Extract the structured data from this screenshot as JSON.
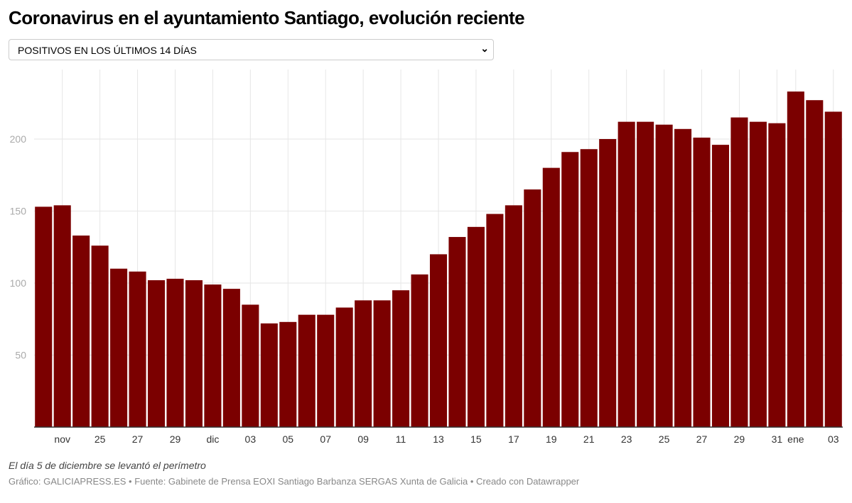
{
  "title": "Coronavirus en el ayuntamiento Santiago, evolución reciente",
  "dropdown": {
    "selected": "POSITIVOS EN LOS ÚLTIMOS 14 DÍAS",
    "icon": "chevron-down-icon"
  },
  "note": "El día 5 de diciembre se levantó el perímetro",
  "source": "Gráfico: GALICIAPRESS.ES • Fuente: Gabinete de Prensa EOXI Santiago Barbanza SERGAS Xunta de Galicia • Creado con Datawrapper",
  "chart_data": {
    "type": "bar",
    "color": "#7b0000",
    "grid": true,
    "ylim": [
      0,
      240
    ],
    "yticks": [
      50,
      100,
      150,
      200
    ],
    "xticklabels": [
      "nov",
      "25",
      "27",
      "29",
      "dic",
      "03",
      "05",
      "07",
      "09",
      "11",
      "13",
      "15",
      "17",
      "19",
      "21",
      "23",
      "25",
      "27",
      "29",
      "31",
      "ene",
      "03"
    ],
    "xtick_index": [
      1,
      3,
      5,
      7,
      9,
      11,
      13,
      15,
      17,
      19,
      21,
      23,
      25,
      27,
      29,
      31,
      33,
      35,
      37,
      39,
      40,
      42
    ],
    "categories": [
      "2020-11-22",
      "2020-11-23",
      "2020-11-24",
      "2020-11-25",
      "2020-11-26",
      "2020-11-27",
      "2020-11-28",
      "2020-11-29",
      "2020-11-30",
      "2020-12-01",
      "2020-12-02",
      "2020-12-03",
      "2020-12-04",
      "2020-12-05",
      "2020-12-06",
      "2020-12-07",
      "2020-12-08",
      "2020-12-09",
      "2020-12-10",
      "2020-12-11",
      "2020-12-12",
      "2020-12-13",
      "2020-12-14",
      "2020-12-15",
      "2020-12-16",
      "2020-12-17",
      "2020-12-18",
      "2020-12-19",
      "2020-12-20",
      "2020-12-21",
      "2020-12-22",
      "2020-12-23",
      "2020-12-24",
      "2020-12-25",
      "2020-12-26",
      "2020-12-27",
      "2020-12-28",
      "2020-12-29",
      "2020-12-30",
      "2020-12-31",
      "2021-01-01",
      "2021-01-02",
      "2021-01-03"
    ],
    "values": [
      153,
      154,
      133,
      126,
      110,
      108,
      102,
      103,
      102,
      99,
      96,
      85,
      72,
      73,
      78,
      78,
      83,
      88,
      88,
      95,
      106,
      120,
      132,
      139,
      148,
      154,
      165,
      180,
      191,
      193,
      200,
      212,
      212,
      210,
      207,
      201,
      196,
      215,
      212,
      211,
      233,
      227,
      219
    ]
  }
}
